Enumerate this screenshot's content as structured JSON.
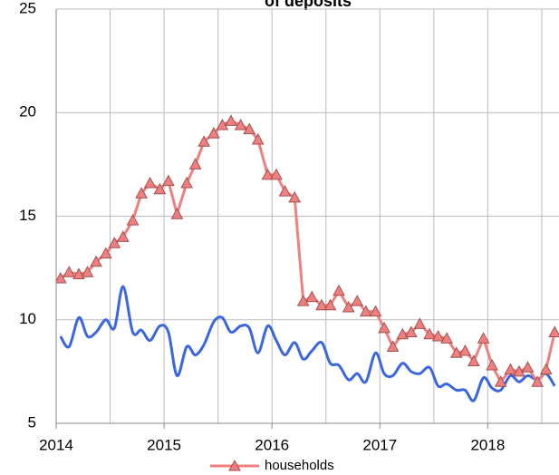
{
  "chart_data": {
    "type": "line",
    "title": "of deposits",
    "xlim": [
      2014,
      2018.66
    ],
    "xticks": [
      2014,
      2015,
      2016,
      2017,
      2018
    ],
    "x_minor_ticks": [
      2014.5,
      2015.5,
      2016.5,
      2017.5,
      2018.5
    ],
    "ylim": [
      5,
      25
    ],
    "yticks": [
      5,
      10,
      15,
      20,
      25
    ],
    "grid": true,
    "x": [
      2014.04,
      2014.12,
      2014.21,
      2014.29,
      2014.37,
      2014.46,
      2014.54,
      2014.62,
      2014.71,
      2014.79,
      2014.87,
      2014.96,
      2015.04,
      2015.12,
      2015.21,
      2015.29,
      2015.37,
      2015.46,
      2015.54,
      2015.62,
      2015.71,
      2015.79,
      2015.87,
      2015.96,
      2016.04,
      2016.12,
      2016.21,
      2016.29,
      2016.37,
      2016.46,
      2016.54,
      2016.62,
      2016.71,
      2016.79,
      2016.87,
      2016.96,
      2017.04,
      2017.12,
      2017.21,
      2017.29,
      2017.37,
      2017.46,
      2017.54,
      2017.62,
      2017.71,
      2017.79,
      2017.87,
      2017.96,
      2018.04,
      2018.12,
      2018.21,
      2018.29,
      2018.37,
      2018.46,
      2018.54,
      2018.62
    ],
    "series": [
      {
        "name": "households",
        "color": "#f08080",
        "marker": "triangle",
        "values": [
          12.0,
          12.3,
          12.2,
          12.3,
          12.8,
          13.2,
          13.7,
          14.0,
          14.8,
          16.1,
          16.6,
          16.3,
          16.7,
          15.1,
          16.6,
          17.5,
          18.6,
          19.0,
          19.4,
          19.6,
          19.4,
          19.2,
          18.7,
          17.0,
          17.0,
          16.2,
          15.9,
          10.9,
          11.1,
          10.7,
          10.7,
          11.4,
          10.6,
          10.9,
          10.4,
          10.4,
          9.6,
          8.7,
          9.3,
          9.4,
          9.8,
          9.3,
          9.2,
          9.1,
          8.4,
          8.5,
          8.0,
          9.1,
          7.8,
          7.0,
          7.6,
          7.5,
          7.7,
          7.0,
          7.6,
          9.4
        ]
      },
      {
        "color": "#3a66e0",
        "smooth": true,
        "values": [
          9.2,
          8.7,
          10.1,
          9.2,
          9.4,
          10.0,
          9.6,
          11.6,
          9.4,
          9.5,
          9.0,
          9.7,
          9.4,
          7.3,
          8.7,
          8.3,
          8.8,
          9.9,
          10.1,
          9.4,
          9.7,
          9.6,
          8.4,
          9.7,
          9.0,
          8.3,
          8.9,
          8.1,
          8.5,
          8.9,
          7.9,
          7.8,
          7.1,
          7.4,
          7.0,
          8.4,
          7.4,
          7.3,
          7.9,
          7.5,
          7.4,
          7.7,
          6.8,
          6.9,
          6.6,
          6.6,
          6.1,
          7.2,
          6.7,
          6.6,
          7.3,
          7.0,
          7.3,
          7.1,
          7.4,
          6.8
        ]
      }
    ]
  }
}
